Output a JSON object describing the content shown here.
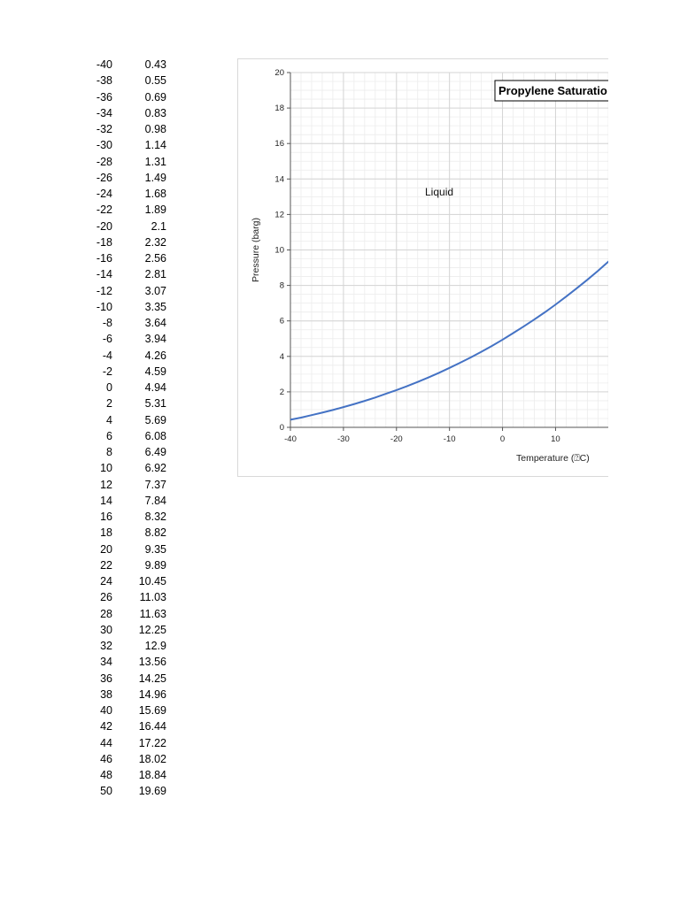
{
  "table": {
    "temps": [
      "-40",
      "-38",
      "-36",
      "-34",
      "-32",
      "-30",
      "-28",
      "-26",
      "-24",
      "-22",
      "-20",
      "-18",
      "-16",
      "-14",
      "-12",
      "-10",
      "-8",
      "-6",
      "-4",
      "-2",
      "0",
      "2",
      "4",
      "6",
      "8",
      "10",
      "12",
      "14",
      "16",
      "18",
      "20",
      "22",
      "24",
      "26",
      "28",
      "30",
      "32",
      "34",
      "36",
      "38",
      "40",
      "42",
      "44",
      "46",
      "48",
      "50"
    ],
    "pressures": [
      "0.43",
      "0.55",
      "0.69",
      "0.83",
      "0.98",
      "1.14",
      "1.31",
      "1.49",
      "1.68",
      "1.89",
      "2.1",
      "2.32",
      "2.56",
      "2.81",
      "3.07",
      "3.35",
      "3.64",
      "3.94",
      "4.26",
      "4.59",
      "4.94",
      "5.31",
      "5.69",
      "6.08",
      "6.49",
      "6.92",
      "7.37",
      "7.84",
      "8.32",
      "8.82",
      "9.35",
      "9.89",
      "10.45",
      "11.03",
      "11.63",
      "12.25",
      "12.9",
      "13.56",
      "14.25",
      "14.96",
      "15.69",
      "16.44",
      "17.22",
      "18.02",
      "18.84",
      "19.69"
    ]
  },
  "chart_data": {
    "type": "line",
    "title": "Propylene Saturatio",
    "xlabel": "Temperature (⍰C)",
    "ylabel": "Pressure (barg)",
    "annotation": "Liquid",
    "xlim": [
      -40,
      50
    ],
    "ylim": [
      0,
      20
    ],
    "x_ticks": [
      -40,
      -30,
      -20,
      -10,
      0,
      10
    ],
    "y_ticks": [
      0,
      2,
      4,
      6,
      8,
      10,
      12,
      14,
      16,
      18,
      20
    ],
    "grid": true,
    "line_color": "#4472c4",
    "series": [
      {
        "x": [
          -40,
          -38,
          -36,
          -34,
          -32,
          -30,
          -28,
          -26,
          -24,
          -22,
          -20,
          -18,
          -16,
          -14,
          -12,
          -10,
          -8,
          -6,
          -4,
          -2,
          0,
          2,
          4,
          6,
          8,
          10,
          12,
          14,
          16,
          18,
          20,
          22,
          24,
          26,
          28,
          30,
          32,
          34,
          36,
          38,
          40,
          42,
          44,
          46,
          48,
          50
        ],
        "values": [
          0.43,
          0.55,
          0.69,
          0.83,
          0.98,
          1.14,
          1.31,
          1.49,
          1.68,
          1.89,
          2.1,
          2.32,
          2.56,
          2.81,
          3.07,
          3.35,
          3.64,
          3.94,
          4.26,
          4.59,
          4.94,
          5.31,
          5.69,
          6.08,
          6.49,
          6.92,
          7.37,
          7.84,
          8.32,
          8.82,
          9.35,
          9.89,
          10.45,
          11.03,
          11.63,
          12.25,
          12.9,
          13.56,
          14.25,
          14.96,
          15.69,
          16.44,
          17.22,
          18.02,
          18.84,
          19.69
        ]
      }
    ]
  }
}
